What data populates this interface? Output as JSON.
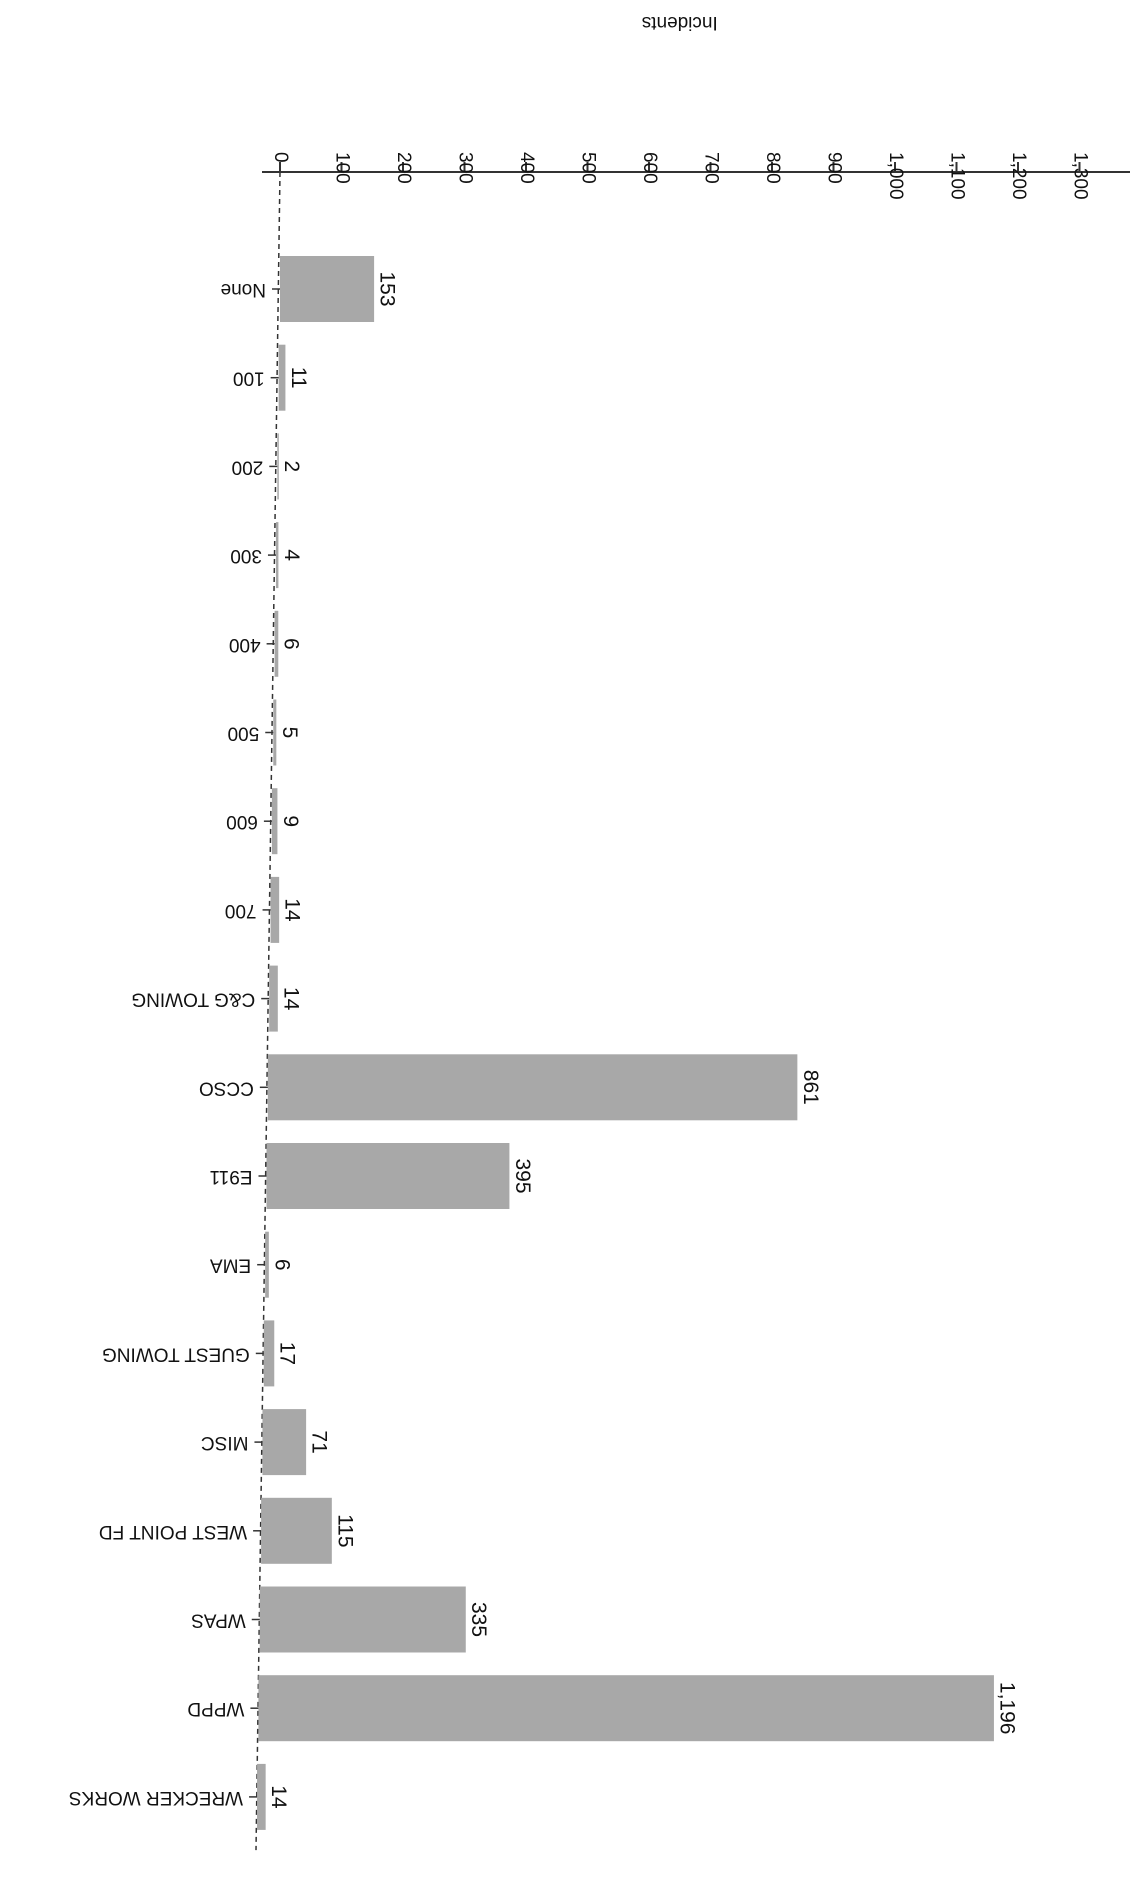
{
  "chart_data": {
    "type": "bar",
    "orientation": "horizontal",
    "rotated": "180deg (image scanned upside-down)",
    "title": "",
    "xlabel": "Incidents",
    "ylabel": "",
    "xlim": [
      0,
      1300
    ],
    "xticks": [
      0,
      100,
      200,
      300,
      400,
      500,
      600,
      700,
      800,
      900,
      1000,
      1100,
      1200,
      1300
    ],
    "xtick_labels": [
      "0",
      "100",
      "200",
      "300",
      "400",
      "500",
      "600",
      "700",
      "800",
      "900",
      "1,000",
      "1,100",
      "1,200",
      "1,300"
    ],
    "categories": [
      "None",
      "100",
      "200",
      "300",
      "400",
      "500",
      "600",
      "700",
      "C&G TOWING",
      "CCSO",
      "E911",
      "EMA",
      "GUEST TOWING",
      "MISC",
      "WEST POINT FD",
      "WPAS",
      "WPPD",
      "WRECKER WORKS"
    ],
    "values": [
      153,
      11,
      2,
      4,
      6,
      5,
      9,
      14,
      14,
      861,
      395,
      6,
      17,
      71,
      115,
      335,
      1196,
      14
    ],
    "value_labels": [
      "153",
      "11",
      "2",
      "4",
      "6",
      "5",
      "9",
      "14",
      "14",
      "861",
      "395",
      "6",
      "17",
      "71",
      "115",
      "335",
      "1,196",
      "14"
    ],
    "bar_color": "#a8a8a8",
    "grid": false,
    "legend": "none"
  }
}
